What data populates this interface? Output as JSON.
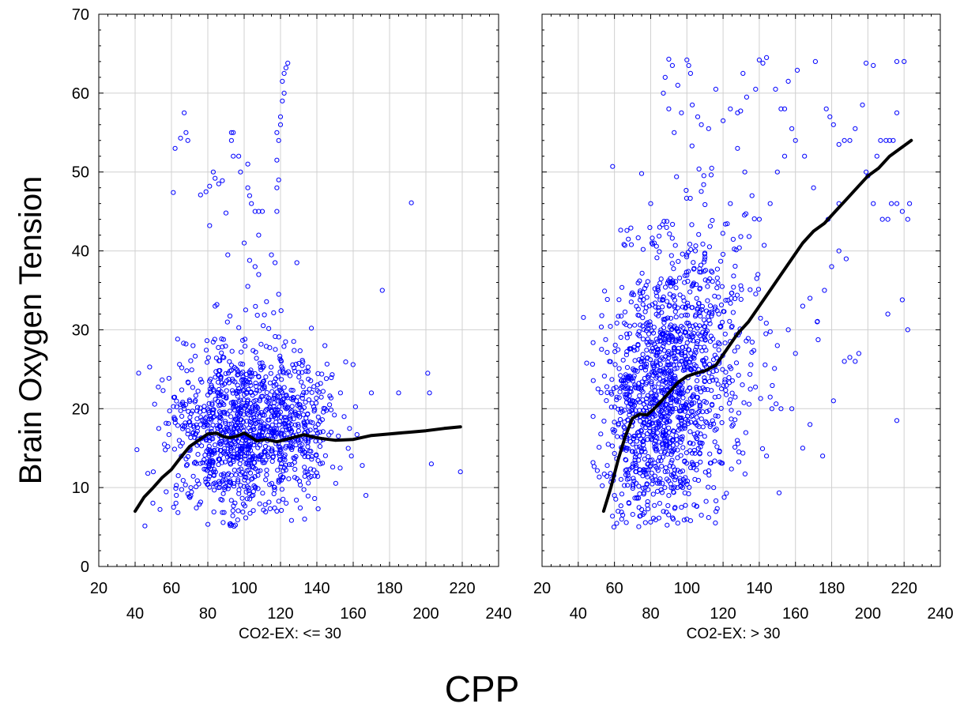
{
  "chart_data": {
    "type": "scatter",
    "ylabel": "Brain Oxygen Tension",
    "xlabel": "CPP",
    "ylim": [
      0,
      70
    ],
    "yticks": [
      "0",
      "10",
      "20",
      "30",
      "40",
      "50",
      "60",
      "70"
    ],
    "xlim": [
      20,
      240
    ],
    "xticks_upper": [
      "20",
      "60",
      "100",
      "140",
      "180",
      "220"
    ],
    "xticks_lower": [
      "40",
      "80",
      "120",
      "160",
      "200",
      "240"
    ],
    "grid": true,
    "colors": {
      "points": "#0000ff",
      "smooth_line": "#000000",
      "grid": "#d0d0d0"
    },
    "panels": [
      {
        "label": "CO2-EX: <= 30",
        "cloud": [
          {
            "cx": 102,
            "cy": 18,
            "sx": 18,
            "sy": 5.2,
            "n": 900
          },
          {
            "cx": 85,
            "cy": 13,
            "sx": 14,
            "sy": 4.5,
            "n": 180
          },
          {
            "cx": 132,
            "cy": 17,
            "sx": 9,
            "sy": 4.5,
            "n": 140
          }
        ],
        "points": [
          [
            41,
            14.8
          ],
          [
            47,
            11.8
          ],
          [
            50,
            12
          ],
          [
            53,
            17.5
          ],
          [
            58,
            15.2
          ],
          [
            61,
            47.4
          ],
          [
            62,
            53
          ],
          [
            65,
            54.3
          ],
          [
            67,
            57.5
          ],
          [
            68,
            55
          ],
          [
            69,
            54
          ],
          [
            68,
            28.2
          ],
          [
            76,
            47.1
          ],
          [
            79,
            47.5
          ],
          [
            81,
            48.2
          ],
          [
            83,
            50
          ],
          [
            84,
            49.2
          ],
          [
            86,
            48.5
          ],
          [
            88,
            48.9
          ],
          [
            90,
            44.8
          ],
          [
            81,
            43.2
          ],
          [
            84,
            33
          ],
          [
            85,
            33.2
          ],
          [
            91,
            39.5
          ],
          [
            93,
            55
          ],
          [
            94,
            55
          ],
          [
            93,
            54
          ],
          [
            94,
            52
          ],
          [
            97,
            52
          ],
          [
            98,
            50
          ],
          [
            100,
            41
          ],
          [
            102,
            51
          ],
          [
            102,
            48
          ],
          [
            103,
            47
          ],
          [
            104,
            46
          ],
          [
            106,
            45
          ],
          [
            108,
            45
          ],
          [
            110,
            45
          ],
          [
            103,
            38.8
          ],
          [
            106,
            38
          ],
          [
            108,
            37
          ],
          [
            102,
            35.5
          ],
          [
            108,
            42
          ],
          [
            115,
            39.5
          ],
          [
            117,
            38.5
          ],
          [
            119,
            34.5
          ],
          [
            118,
            45
          ],
          [
            118,
            48
          ],
          [
            119,
            49
          ],
          [
            118,
            51.5
          ],
          [
            118,
            55
          ],
          [
            120,
            57
          ],
          [
            121,
            59
          ],
          [
            121,
            61.5
          ],
          [
            122,
            62.5
          ],
          [
            123,
            63.2
          ],
          [
            124,
            63.8
          ],
          [
            122,
            60
          ],
          [
            120,
            56
          ],
          [
            119,
            54
          ],
          [
            129,
            38.5
          ],
          [
            137,
            30.2
          ],
          [
            153,
            22
          ],
          [
            159,
            14
          ],
          [
            165,
            12.8
          ],
          [
            167,
            9
          ],
          [
            170,
            22
          ],
          [
            176,
            35
          ],
          [
            185,
            22
          ],
          [
            192,
            46.1
          ],
          [
            201,
            24.5
          ],
          [
            202,
            22
          ],
          [
            203,
            13
          ],
          [
            219,
            12
          ],
          [
            155,
            19
          ],
          [
            158,
            17.5
          ],
          [
            147,
            20.5
          ]
        ],
        "line": {
          "x": [
            40,
            45,
            50,
            55,
            60,
            65,
            70,
            75,
            80,
            85,
            88,
            92,
            96,
            100,
            103,
            107,
            112,
            118,
            123,
            128,
            133,
            138,
            143,
            150,
            160,
            170,
            180,
            190,
            200,
            210,
            219
          ],
          "y": [
            7,
            8.8,
            10,
            11.3,
            12.3,
            13.8,
            15.2,
            16,
            16.8,
            16.9,
            16.5,
            16.3,
            16.5,
            16.9,
            16.5,
            15.9,
            16.1,
            15.8,
            16.1,
            16.4,
            16.7,
            16.4,
            16.2,
            16.0,
            16.1,
            16.6,
            16.8,
            17.0,
            17.2,
            17.5,
            17.7
          ]
        }
      },
      {
        "label": "CO2-EX: > 30",
        "cloud": [
          {
            "cx": 88,
            "cy": 22,
            "sx": 15,
            "sy": 7.5,
            "n": 850
          },
          {
            "cx": 108,
            "cy": 28,
            "sx": 18,
            "sy": 9,
            "n": 380
          },
          {
            "cx": 72,
            "cy": 18,
            "sx": 9,
            "sy": 6.5,
            "n": 200
          }
        ],
        "points": [
          [
            59,
            50.7
          ],
          [
            53,
            31.8
          ],
          [
            56,
            12.8
          ],
          [
            60,
            9
          ],
          [
            62,
            7
          ],
          [
            90,
            64.3
          ],
          [
            92,
            63.5
          ],
          [
            100,
            64.2
          ],
          [
            101,
            63.5
          ],
          [
            102,
            62.5
          ],
          [
            88,
            62
          ],
          [
            87,
            60
          ],
          [
            95,
            61
          ],
          [
            90,
            58
          ],
          [
            93,
            55
          ],
          [
            97,
            57.5
          ],
          [
            103,
            58.5
          ],
          [
            106,
            57
          ],
          [
            108,
            56
          ],
          [
            112,
            55.5
          ],
          [
            116,
            60.5
          ],
          [
            120,
            56.5
          ],
          [
            124,
            58
          ],
          [
            128,
            57.5
          ],
          [
            131,
            62.5
          ],
          [
            133,
            59.5
          ],
          [
            138,
            60.5
          ],
          [
            140,
            64.2
          ],
          [
            142,
            63.8
          ],
          [
            144,
            64.5
          ],
          [
            149,
            60.5
          ],
          [
            152,
            58
          ],
          [
            156,
            61.5
          ],
          [
            161,
            62.9
          ],
          [
            171,
            64
          ],
          [
            154,
            58
          ],
          [
            158,
            55.5
          ],
          [
            177,
            58
          ],
          [
            179,
            57
          ],
          [
            181,
            56
          ],
          [
            184,
            53.5
          ],
          [
            187,
            54
          ],
          [
            190,
            54
          ],
          [
            193,
            55.5
          ],
          [
            197,
            58.5
          ],
          [
            199,
            63.8
          ],
          [
            203,
            63.5
          ],
          [
            207,
            54
          ],
          [
            210,
            54
          ],
          [
            212,
            54
          ],
          [
            214,
            54
          ],
          [
            216,
            64
          ],
          [
            220,
            64
          ],
          [
            216,
            57.5
          ],
          [
            199,
            50
          ],
          [
            205,
            52
          ],
          [
            200,
            49.5
          ],
          [
            203,
            46
          ],
          [
            208,
            44
          ],
          [
            211,
            44
          ],
          [
            213,
            46
          ],
          [
            216,
            46
          ],
          [
            219,
            45
          ],
          [
            222,
            44
          ],
          [
            223,
            46
          ],
          [
            211,
            32
          ],
          [
            219,
            33.8
          ],
          [
            222,
            30
          ],
          [
            216,
            18.5
          ],
          [
            175,
            14
          ],
          [
            187,
            26
          ],
          [
            190,
            26.5
          ],
          [
            195,
            27
          ],
          [
            193,
            26
          ],
          [
            181,
            21
          ],
          [
            164,
            15
          ],
          [
            168,
            18
          ],
          [
            158,
            20
          ],
          [
            152,
            20
          ],
          [
            147,
            20
          ],
          [
            144,
            14
          ],
          [
            150,
            28
          ],
          [
            156,
            30
          ],
          [
            160,
            27
          ],
          [
            164,
            33
          ],
          [
            168,
            34
          ],
          [
            172,
            31
          ],
          [
            176,
            35
          ],
          [
            180,
            38
          ],
          [
            184,
            40
          ],
          [
            188,
            39
          ],
          [
            178,
            44
          ],
          [
            184,
            46
          ],
          [
            140,
            44
          ],
          [
            146,
            46
          ],
          [
            150,
            50
          ],
          [
            154,
            52
          ],
          [
            160,
            54
          ],
          [
            165,
            52
          ],
          [
            170,
            48
          ],
          [
            136,
            47
          ],
          [
            132,
            50
          ],
          [
            128,
            53
          ],
          [
            124,
            46
          ],
          [
            95,
            5.5
          ],
          [
            100,
            6
          ],
          [
            102,
            5.8
          ],
          [
            97,
            7.5
          ],
          [
            104,
            7.8
          ],
          [
            108,
            6.5
          ],
          [
            112,
            6.2
          ],
          [
            85,
            8
          ],
          [
            90,
            9
          ],
          [
            77,
            10
          ],
          [
            68,
            8
          ],
          [
            64,
            6
          ],
          [
            72,
            12
          ],
          [
            75,
            49.8
          ],
          [
            80,
            46
          ],
          [
            85,
            43
          ],
          [
            82,
            41
          ]
        ],
        "line": {
          "x": [
            54,
            58,
            62,
            66,
            70,
            74,
            78,
            82,
            86,
            90,
            95,
            100,
            105,
            110,
            116,
            122,
            128,
            134,
            140,
            146,
            152,
            158,
            164,
            170,
            176,
            182,
            188,
            194,
            200,
            206,
            212,
            218,
            224
          ],
          "y": [
            7,
            10,
            13.5,
            16.5,
            18.8,
            19.3,
            19.2,
            20,
            21,
            22,
            23.3,
            24.1,
            24.5,
            24.8,
            25.5,
            27.5,
            29.5,
            31,
            33,
            35,
            37,
            39,
            41,
            42.5,
            43.5,
            45,
            46.5,
            48,
            49.5,
            50.5,
            52,
            53,
            54
          ]
        }
      }
    ]
  }
}
